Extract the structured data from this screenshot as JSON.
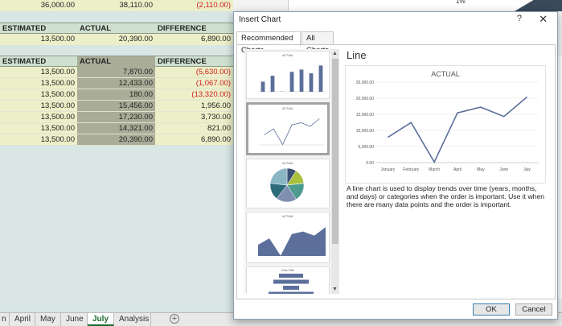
{
  "sheet": {
    "top_row": [
      "36,000.00",
      "38,110.00",
      "(2,110.00)"
    ],
    "summary_headers": [
      "ESTIMATED",
      "ACTUAL",
      "DIFFERENCE"
    ],
    "summary_row": [
      "13,500.00",
      "20,390.00",
      "6,890.00"
    ],
    "detail_headers": [
      "ESTIMATED",
      "ACTUAL",
      "DIFFERENCE"
    ],
    "detail_rows": [
      [
        "13,500.00",
        "7,870.00",
        "(5,630.00)"
      ],
      [
        "13,500.00",
        "12,433.00",
        "(1,067.00)"
      ],
      [
        "13,500.00",
        "180.00",
        "(13,320.00)"
      ],
      [
        "13,500.00",
        "15,456.00",
        "1,956.00"
      ],
      [
        "13,500.00",
        "17,230.00",
        "3,730.00"
      ],
      [
        "13,500.00",
        "14,321.00",
        "821.00"
      ],
      [
        "13,500.00",
        "20,390.00",
        "6,890.00"
      ]
    ],
    "right_top_text": "1%",
    "right_edge_text": "le"
  },
  "tabs": {
    "items": [
      "n",
      "April",
      "May",
      "June",
      "July",
      "Analysis"
    ],
    "active": "July"
  },
  "dialog": {
    "title": "Insert Chart",
    "help": "?",
    "close": "✕",
    "tabs": [
      "Recommended Charts",
      "All Charts"
    ],
    "preview_title": "Line",
    "description": "A line chart is used to display trends over time (years, months, and days) or categories when the order is important. Use it when there are many data points and the order is important.",
    "ok_label": "OK",
    "cancel_label": "Cancel"
  },
  "chart_data": {
    "type": "line",
    "title": "ACTUAL",
    "categories": [
      "January",
      "February",
      "March",
      "April",
      "May",
      "June",
      "July"
    ],
    "values": [
      7870,
      12433,
      180,
      15456,
      17230,
      14321,
      20390
    ],
    "yticks": [
      "0.00",
      "5,000.00",
      "10,000.00",
      "15,000.00",
      "20,000.00",
      "25,000.00"
    ],
    "ylim": [
      0,
      25000
    ],
    "color": "#5b6f9a"
  },
  "thumbnails": [
    {
      "type": "bar",
      "title": "ACTUAL"
    },
    {
      "type": "line",
      "title": "ACTUAL"
    },
    {
      "type": "pie",
      "title": "ACTUAL"
    },
    {
      "type": "area",
      "title": "ACTUAL"
    },
    {
      "type": "funnel",
      "title": "Chart Title"
    }
  ],
  "colors": {
    "accent_green": "#1d6b2e",
    "negative_red": "#d11f1f",
    "series_blue": "#5b6f9a",
    "pie": [
      "#3d4f73",
      "#a8c03c",
      "#5b8ea6",
      "#4d9b8f",
      "#7f8fb0",
      "#2d6b7a",
      "#8ab6c4"
    ]
  }
}
